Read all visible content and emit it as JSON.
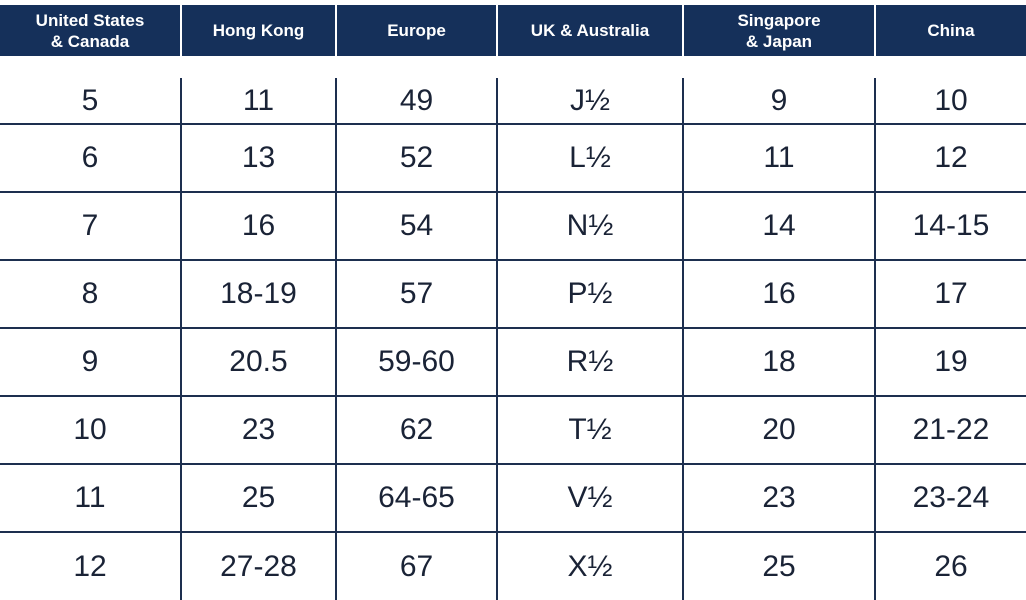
{
  "table": {
    "headers": [
      "United States\n& Canada",
      "Hong Kong",
      "Europe",
      "UK & Australia",
      "Singapore\n& Japan",
      "China"
    ],
    "rows": [
      [
        "5",
        "11",
        "49",
        "J½",
        "9",
        "10"
      ],
      [
        "6",
        "13",
        "52",
        "L½",
        "11",
        "12"
      ],
      [
        "7",
        "16",
        "54",
        "N½",
        "14",
        "14-15"
      ],
      [
        "8",
        "18-19",
        "57",
        "P½",
        "16",
        "17"
      ],
      [
        "9",
        "20.5",
        "59-60",
        "R½",
        "18",
        "19"
      ],
      [
        "10",
        "23",
        "62",
        "T½",
        "20",
        "21-22"
      ],
      [
        "11",
        "25",
        "64-65",
        "V½",
        "23",
        "23-24"
      ],
      [
        "12",
        "27-28",
        "67",
        "X½",
        "25",
        "26"
      ]
    ]
  },
  "colors": {
    "header_bg": "#15305a",
    "header_text": "#ffffff",
    "grid_line": "#1d2f4f",
    "cell_text": "#1a2336"
  }
}
